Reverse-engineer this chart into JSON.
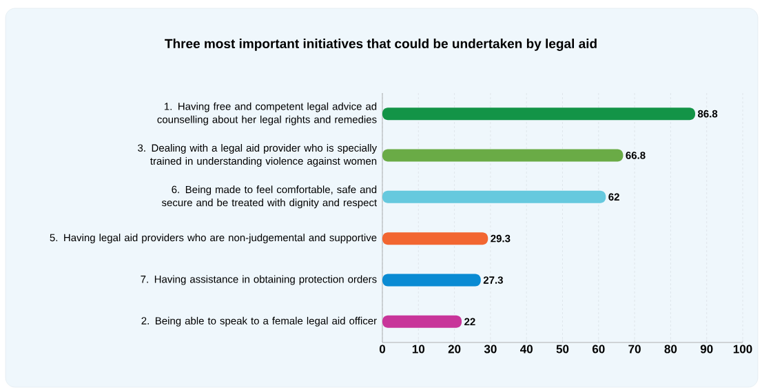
{
  "chart_data": {
    "type": "bar",
    "orientation": "horizontal",
    "title": "Three most important initiatives that could be undertaken by legal aid",
    "categories": [
      "1. Having free and competent legal advice ad counselling about her legal rights and remedies",
      "3. Dealing with a legal aid provider who is specially trained in understanding violence against women",
      "6. Being made to feel comfortable, safe and secure and be treated with dignity and respect",
      "5. Having legal aid providers who are non-judgemental and supportive",
      "7. Having assistance in obtaining protection orders",
      "2. Being able to speak to a female legal aid officer"
    ],
    "values": [
      86.8,
      66.8,
      62,
      29.3,
      27.3,
      22
    ],
    "value_labels": [
      "86.8",
      "66.8",
      "62",
      "29.3",
      "27.3",
      "22"
    ],
    "colors": [
      "#139447",
      "#6aab46",
      "#66c9de",
      "#f26631",
      "#0a8bd3",
      "#c8359a"
    ],
    "xlim": [
      0,
      100
    ],
    "xticks": [
      0,
      10,
      20,
      30,
      40,
      50,
      60,
      70,
      80,
      90,
      100
    ],
    "grid": "x"
  }
}
